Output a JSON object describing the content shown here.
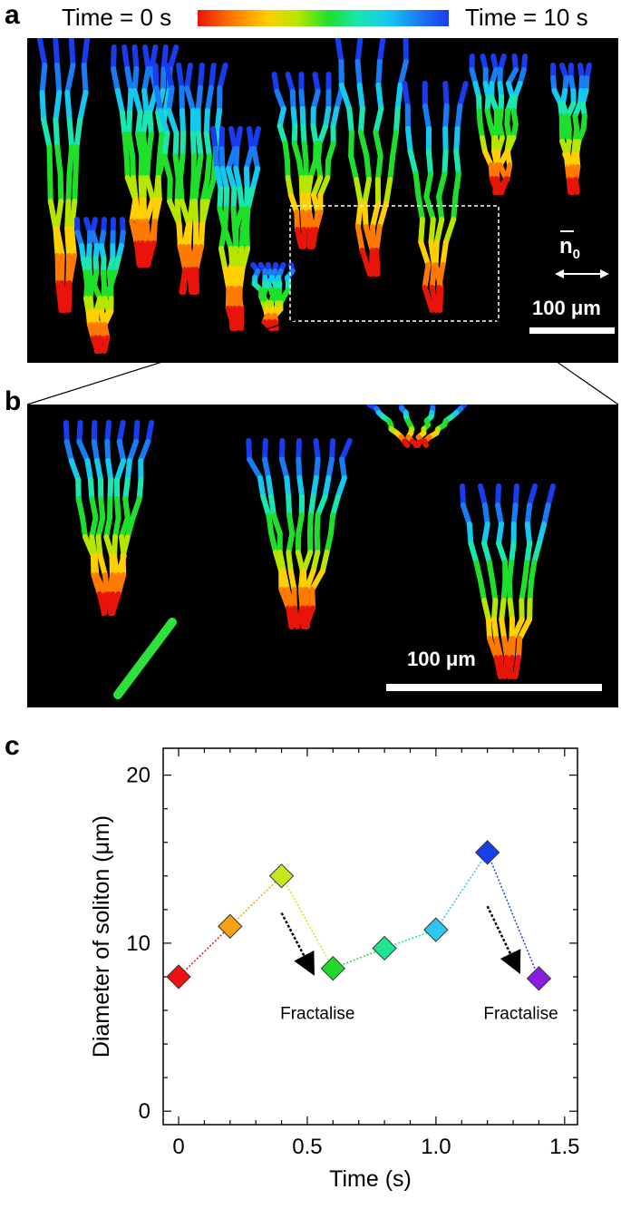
{
  "panels": {
    "a": {
      "letter": "a",
      "colorbar": {
        "left_label": "Time = 0 s",
        "right_label": "Time = 10 s",
        "colors": [
          "#e8140a",
          "#ff7a00",
          "#ffd000",
          "#b6e600",
          "#1ee02a",
          "#19e6b0",
          "#14c8f0",
          "#1a7cf5",
          "#1a3cf0"
        ]
      },
      "director_label": "n",
      "director_subscript": "0",
      "scale_label": "100 μm"
    },
    "b": {
      "letter": "b",
      "scale_label": "100 μm"
    },
    "c": {
      "letter": "c"
    }
  },
  "chart_data": {
    "type": "line",
    "xlabel": "Time (s)",
    "ylabel": "Diameter of soliton (μm)",
    "xlim": [
      -0.06,
      1.55
    ],
    "ylim": [
      -0.8,
      21.6
    ],
    "xticks": [
      0,
      0.5,
      1.0,
      1.5
    ],
    "xtick_labels": [
      "0",
      "0.5",
      "1.0",
      "1.5"
    ],
    "yticks": [
      0,
      10,
      20
    ],
    "ytick_labels": [
      "0",
      "10",
      "20"
    ],
    "grid": false,
    "line_style": "dotted",
    "marker": "diamond",
    "points": [
      {
        "x": 0.0,
        "y": 8.0,
        "color": "#f01010"
      },
      {
        "x": 0.2,
        "y": 11.0,
        "color": "#f5a015"
      },
      {
        "x": 0.4,
        "y": 14.0,
        "color": "#c8e61e"
      },
      {
        "x": 0.6,
        "y": 8.5,
        "color": "#22d82a"
      },
      {
        "x": 0.8,
        "y": 9.7,
        "color": "#1ee690"
      },
      {
        "x": 1.0,
        "y": 10.8,
        "color": "#2ec8ee"
      },
      {
        "x": 1.2,
        "y": 15.4,
        "color": "#1840e8"
      },
      {
        "x": 1.4,
        "y": 7.9,
        "color": "#8a1ee0"
      }
    ],
    "annotations": [
      {
        "text": "Fractalise",
        "x": 0.54,
        "y": 5.5,
        "arrow_from": [
          0.4,
          11.8
        ],
        "arrow_to": [
          0.52,
          8.3
        ]
      },
      {
        "text": "Fractalise",
        "x": 1.33,
        "y": 5.5,
        "arrow_from": [
          1.2,
          12.2
        ],
        "arrow_to": [
          1.32,
          8.4
        ]
      }
    ]
  }
}
